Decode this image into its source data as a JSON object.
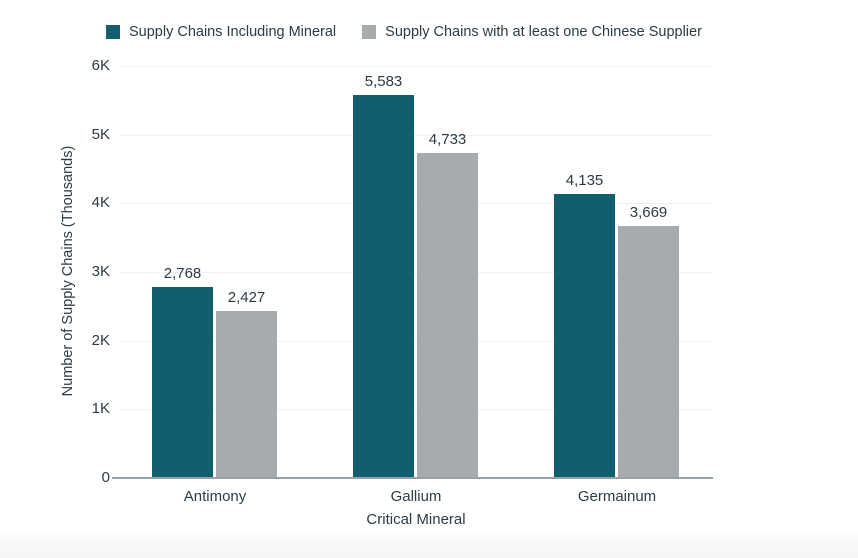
{
  "legend": {
    "items": [
      {
        "label": "Supply Chains Including Mineral",
        "color": "#115e6e"
      },
      {
        "label": "Supply Chains with at least one Chinese Supplier",
        "color": "#a7abae"
      }
    ]
  },
  "chart_data": {
    "type": "bar",
    "title": "",
    "categories": [
      "Antimony",
      "Gallium",
      "Germainum"
    ],
    "series": [
      {
        "name": "Supply Chains Including Mineral",
        "color": "#115e6e",
        "values": [
          2768,
          5583,
          4135
        ],
        "labels": [
          "2,768",
          "5,583",
          "4,135"
        ]
      },
      {
        "name": "Supply Chains with at least one Chinese Supplier",
        "color": "#a7abae",
        "values": [
          2427,
          4733,
          3669
        ],
        "labels": [
          "2,427",
          "4,733",
          "3,669"
        ]
      }
    ],
    "xlabel": "Critical Mineral",
    "ylabel": "Number of Supply Chains (Thousands)",
    "ylim": [
      0,
      6000
    ],
    "y_ticks": [
      "6K",
      "5K",
      "4K",
      "3K",
      "2K",
      "1K",
      "0"
    ],
    "grid": "horizontal",
    "legend_position": "top"
  }
}
